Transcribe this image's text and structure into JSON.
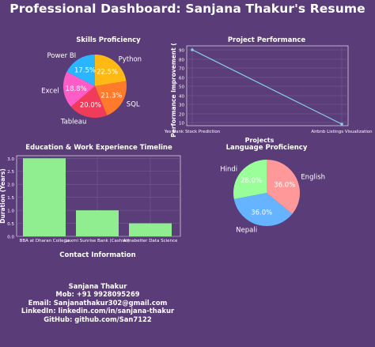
{
  "page": {
    "title": "Professional Dashboard: Sanjana Thakur's Resume"
  },
  "colors": {
    "background": "#5a3c78",
    "axes_face": "#5b3d7a",
    "grid": "#7a6296",
    "bar": "#90ee90",
    "line": "#87ceeb"
  },
  "chart_data": [
    {
      "id": "skills",
      "type": "pie",
      "title": "Skills Proficiency",
      "slices": [
        {
          "label": "Python",
          "value": 22.5,
          "display": "22.5%",
          "color": "#ffb914"
        },
        {
          "label": "SQL",
          "value": 21.3,
          "display": "21.3%",
          "color": "#ff7a2a"
        },
        {
          "label": "Tableau",
          "value": 20.0,
          "display": "20.0%",
          "color": "#f03c5a"
        },
        {
          "label": "Excel",
          "value": 18.8,
          "display": "18.8%",
          "color": "#ff5cc8"
        },
        {
          "label": "Power BI",
          "value": 17.5,
          "display": "17.5%",
          "color": "#2bb5ff"
        }
      ]
    },
    {
      "id": "project",
      "type": "line",
      "title": "Project Performance",
      "xlabel": "Projects",
      "ylabel": "Performance Improvement (%)",
      "categories": [
        "Yes Bank Stock Prediction",
        "Airbnb Listings Visualization"
      ],
      "values": [
        90,
        75
      ],
      "ylim": [
        75,
        90
      ],
      "yticks": [
        75,
        80,
        90
      ],
      "yticks_all": [
        75,
        80,
        90
      ],
      "grid": true
    },
    {
      "id": "education",
      "type": "bar",
      "title": "Education & Work Experience Timeline",
      "xlabel": "",
      "ylabel": "Duration (Years)",
      "categories": [
        "BBA at Dharan College",
        "Laxmi Sunrise Bank (Cashier)",
        "Almabetter Data Science"
      ],
      "values": [
        3.0,
        1.0,
        0.5
      ],
      "ylim": [
        0,
        3.0
      ],
      "yticks": [
        "0.0",
        "0.5",
        "1.0",
        "1.5",
        "2.0",
        "2.5",
        "3.0"
      ],
      "grid": true
    },
    {
      "id": "language",
      "type": "pie",
      "title": "Language Proficiency",
      "slices": [
        {
          "label": "English",
          "value": 36.0,
          "display": "36.0%",
          "color": "#ff9999"
        },
        {
          "label": "Nepali",
          "value": 36.0,
          "display": "36.0%",
          "color": "#66b3ff"
        },
        {
          "label": "Hindi",
          "value": 28.0,
          "display": "28.0%",
          "color": "#99ff99"
        }
      ]
    }
  ],
  "contact": {
    "title": "Contact Information",
    "name": "Sanjana Thakur",
    "mob": "Mob: +91 9928095269",
    "email": "Email: Sanjanathakur302@gmail.com",
    "linkedin": "LinkedIn: linkedin.com/in/sanjana-thakur",
    "github": "GitHub: github.com/San7122"
  }
}
